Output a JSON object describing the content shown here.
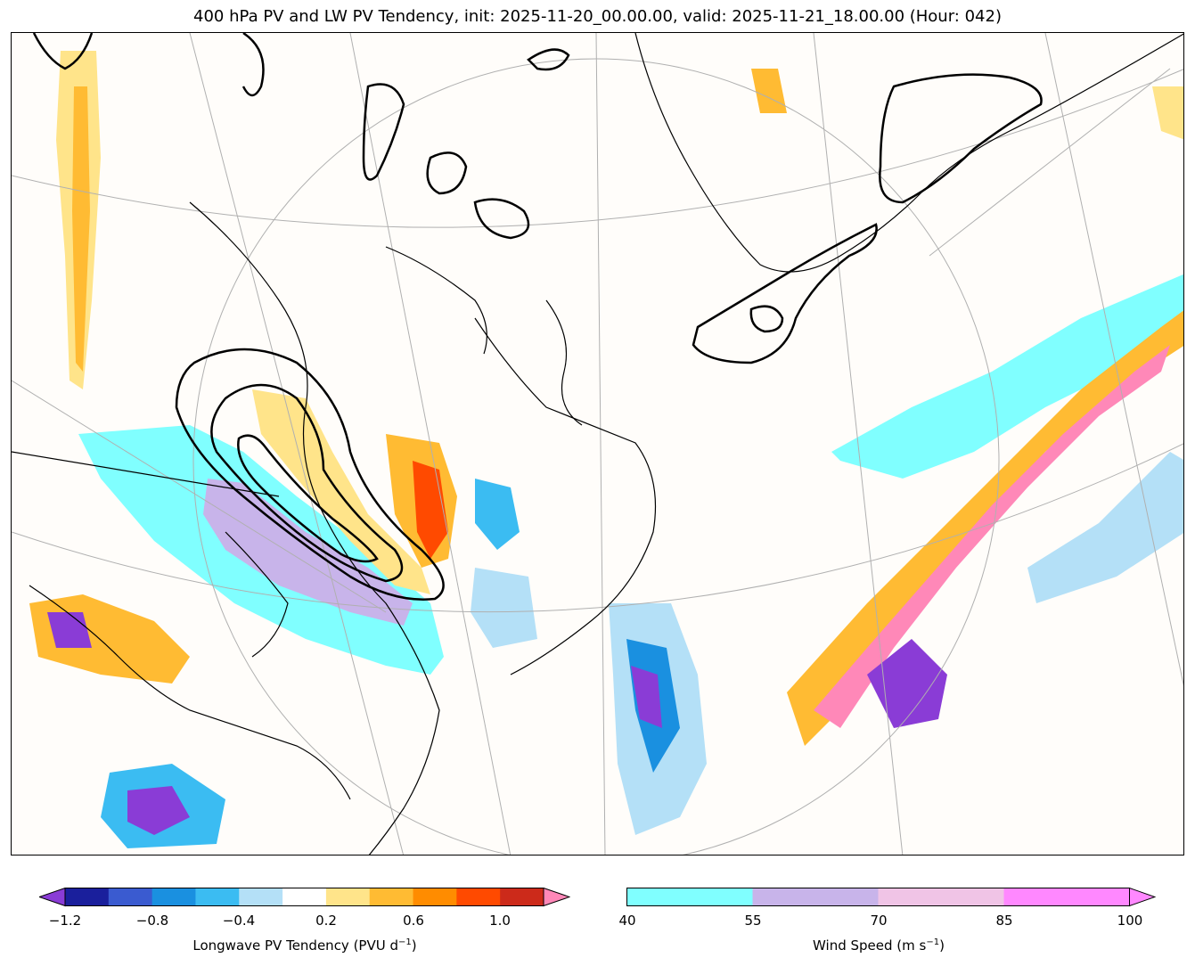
{
  "title": "400 hPa PV and LW PV Tendency, init: 2025-11-20_00.00.00, valid: 2025-11-21_18.00.00 (Hour: 042)",
  "colorbars": {
    "tendency": {
      "label": "Longwave PV Tendency (PVU d",
      "label_sup": "−1",
      "label_end": ")",
      "ticks": [
        "−1.2",
        "−0.8",
        "−0.4",
        "0.2",
        "0.6",
        "1.0"
      ],
      "colors": [
        "#1a1f9c",
        "#3a5bd0",
        "#1a90e0",
        "#3bbcf2",
        "#b4e0f7",
        "#ffffff",
        "#ffe48a",
        "#ffbb33",
        "#ff8c00",
        "#ff4a00",
        "#cc2a1a"
      ],
      "under_color": "#8a3cd6",
      "over_color": "#ff88b8"
    },
    "wind": {
      "label": "Wind Speed (m s",
      "label_sup": "−1",
      "label_end": ")",
      "ticks": [
        "40",
        "55",
        "70",
        "85",
        "100"
      ],
      "colors": [
        "#80ffff",
        "#c8b4ea",
        "#f0c4e6",
        "#ff88ff"
      ]
    }
  }
}
